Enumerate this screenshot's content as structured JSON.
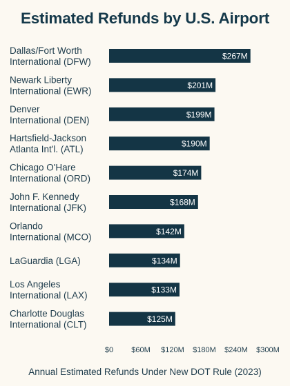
{
  "title": "Estimated Refunds by U.S. Airport",
  "chart_data": {
    "type": "bar",
    "orientation": "horizontal",
    "title": "Estimated Refunds by U.S. Airport",
    "xlabel": "Annual Estimated Refunds Under New DOT Rule (2023)",
    "ylabel": "",
    "xlim": [
      0,
      300
    ],
    "x_ticks": [
      "$0",
      "$60M",
      "$120M",
      "$180M",
      "$240M",
      "$300M"
    ],
    "x_tick_values": [
      0,
      60,
      120,
      180,
      240,
      300
    ],
    "grid": false,
    "categories": [
      [
        "Dallas/Fort Worth",
        "International (DFW)"
      ],
      [
        "Newark Liberty",
        "International (EWR)"
      ],
      [
        "Denver",
        "International (DEN)"
      ],
      [
        "Hartsfield-Jackson",
        "Atlanta Int'l. (ATL)"
      ],
      [
        "Chicago O'Hare",
        "International (ORD)"
      ],
      [
        "John F. Kennedy",
        "International (JFK)"
      ],
      [
        "Orlando",
        "International (MCO)"
      ],
      [
        "LaGuardia (LGA)"
      ],
      [
        "Los Angeles",
        "International (LAX)"
      ],
      [
        "Charlotte Douglas",
        "International (CLT)"
      ]
    ],
    "values": [
      267,
      201,
      199,
      190,
      174,
      168,
      142,
      134,
      133,
      125
    ],
    "value_labels": [
      "$267M",
      "$201M",
      "$199M",
      "$190M",
      "$174M",
      "$168M",
      "$142M",
      "$134M",
      "$133M",
      "$125M"
    ],
    "bar_color": "#143545"
  }
}
